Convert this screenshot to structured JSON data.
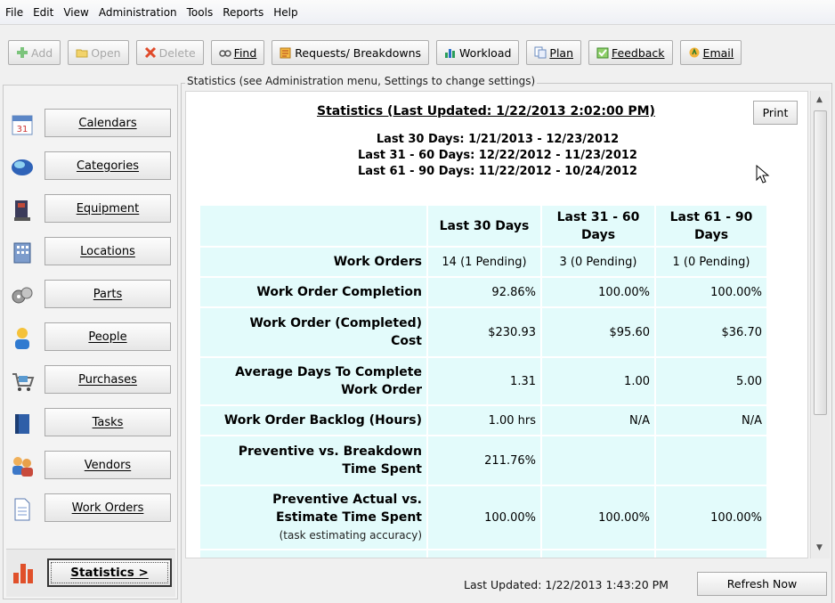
{
  "menu": [
    "File",
    "Edit",
    "View",
    "Administration",
    "Tools",
    "Reports",
    "Help"
  ],
  "toolbar": [
    {
      "label": "Add",
      "icon": "plus-icon",
      "disabled": true
    },
    {
      "label": "Open",
      "icon": "folder-icon",
      "disabled": true
    },
    {
      "label": "Delete",
      "icon": "x-icon",
      "disabled": true
    },
    {
      "label": "Find",
      "icon": "binoculars-icon",
      "disabled": false
    },
    {
      "label": "Requests/ Breakdowns",
      "icon": "requests-icon",
      "disabled": false
    },
    {
      "label": "Workload",
      "icon": "bar-chart-icon",
      "disabled": false
    },
    {
      "label": "Plan",
      "icon": "plan-icon",
      "disabled": false
    },
    {
      "label": "Feedback",
      "icon": "checklist-icon",
      "disabled": false
    },
    {
      "label": "Email",
      "icon": "email-icon",
      "disabled": false
    }
  ],
  "group_label": "Statistics (see Administration menu, Settings to change settings)",
  "sidebar": {
    "items": [
      {
        "label": "Calendars",
        "icon": "calendar-icon"
      },
      {
        "label": "Categories",
        "icon": "categories-icon"
      },
      {
        "label": "Equipment",
        "icon": "equipment-icon"
      },
      {
        "label": "Locations",
        "icon": "building-icon"
      },
      {
        "label": "Parts",
        "icon": "parts-icon"
      },
      {
        "label": "People",
        "icon": "person-icon"
      },
      {
        "label": "Purchases",
        "icon": "cart-icon"
      },
      {
        "label": "Tasks",
        "icon": "book-icon"
      },
      {
        "label": "Vendors",
        "icon": "vendors-icon"
      },
      {
        "label": "Work Orders",
        "icon": "document-icon"
      }
    ],
    "active": {
      "label": "Statistics >",
      "icon": "bar-chart-icon"
    }
  },
  "stats": {
    "title": "Statistics (Last Updated: 1/22/2013 2:02:00 PM)",
    "ranges": [
      "Last 30 Days: 1/21/2013 - 12/23/2012",
      "Last 31 - 60 Days: 12/22/2012 - 11/23/2012",
      "Last 61 - 90 Days: 11/22/2012 - 10/24/2012"
    ],
    "print_label": "Print",
    "headers": [
      "Last 30 Days",
      "Last 31 - 60 Days",
      "Last 61 - 90 Days"
    ],
    "rows": [
      {
        "label": "Work Orders",
        "sub": "",
        "values": [
          "14 (1 Pending)",
          "3 (0 Pending)",
          "1 (0 Pending)"
        ],
        "align": "ctr"
      },
      {
        "label": "Work Order Completion",
        "sub": "",
        "values": [
          "92.86%",
          "100.00%",
          "100.00%"
        ],
        "align": "num"
      },
      {
        "label": "Work Order (Completed) Cost",
        "sub": "",
        "values": [
          "$230.93",
          "$95.60",
          "$36.70"
        ],
        "align": "num"
      },
      {
        "label": "Average Days To Complete Work Order",
        "sub": "",
        "values": [
          "1.31",
          "1.00",
          "5.00"
        ],
        "align": "num"
      },
      {
        "label": "Work Order Backlog (Hours)",
        "sub": "",
        "values": [
          "1.00 hrs",
          "N/A",
          "N/A"
        ],
        "align": "num"
      },
      {
        "label": "Preventive vs. Breakdown Time Spent",
        "sub": "",
        "values": [
          "211.76%",
          "",
          ""
        ],
        "align": "num"
      },
      {
        "label": "Preventive Actual vs. Estimate Time Spent",
        "sub": "(task estimating accuracy)",
        "values": [
          "100.00%",
          "100.00%",
          "100.00%"
        ],
        "align": "num"
      }
    ]
  },
  "footer": {
    "last_updated": "Last Updated: 1/22/2013 1:43:20 PM",
    "refresh_label": "Refresh Now"
  }
}
